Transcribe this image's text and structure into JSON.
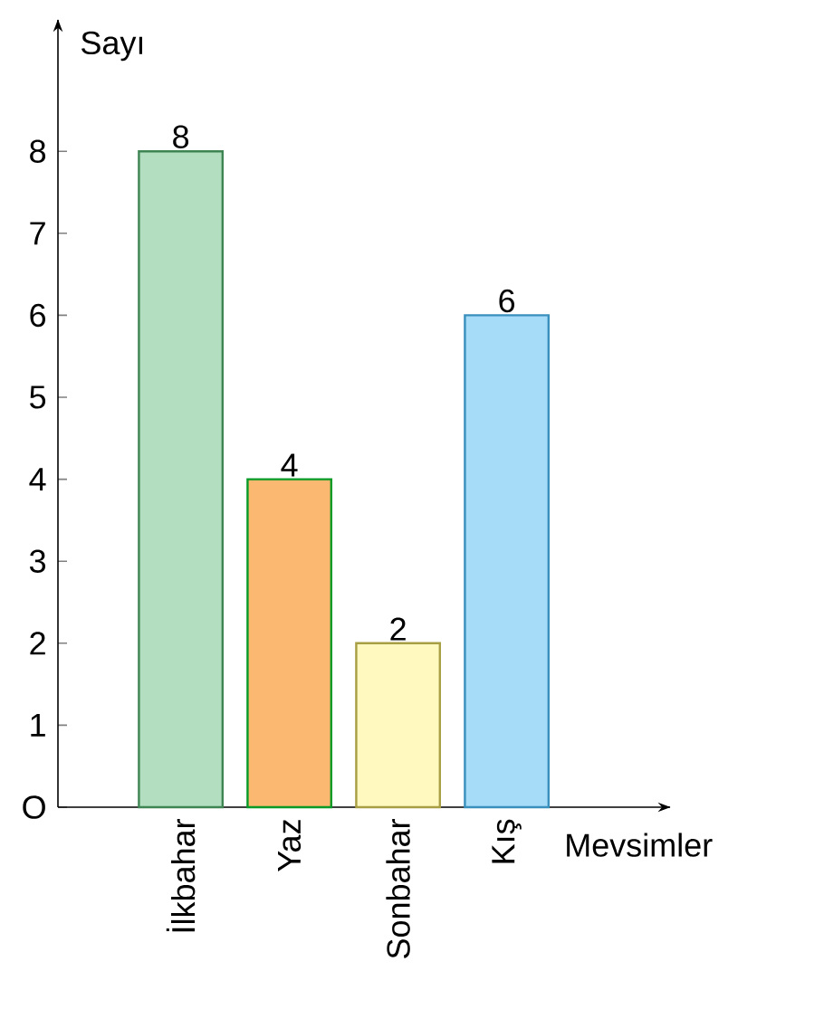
{
  "chart_data": {
    "type": "bar",
    "xlabel": "Mevsimler",
    "ylabel": "Sayı",
    "categories": [
      "İlkbahar",
      "Yaz",
      "Sonbahar",
      "Kış"
    ],
    "values": [
      8,
      4,
      2,
      6
    ],
    "colors": [
      "#b3dfc0",
      "#fbb870",
      "#fff9c0",
      "#a6dcf8"
    ],
    "ylim": [
      0,
      9.6
    ],
    "yticks": [
      {
        "value": 0,
        "label": "O"
      },
      1,
      2,
      3,
      4,
      5,
      6,
      7,
      8
    ],
    "data_labels": true,
    "grid": false
  }
}
